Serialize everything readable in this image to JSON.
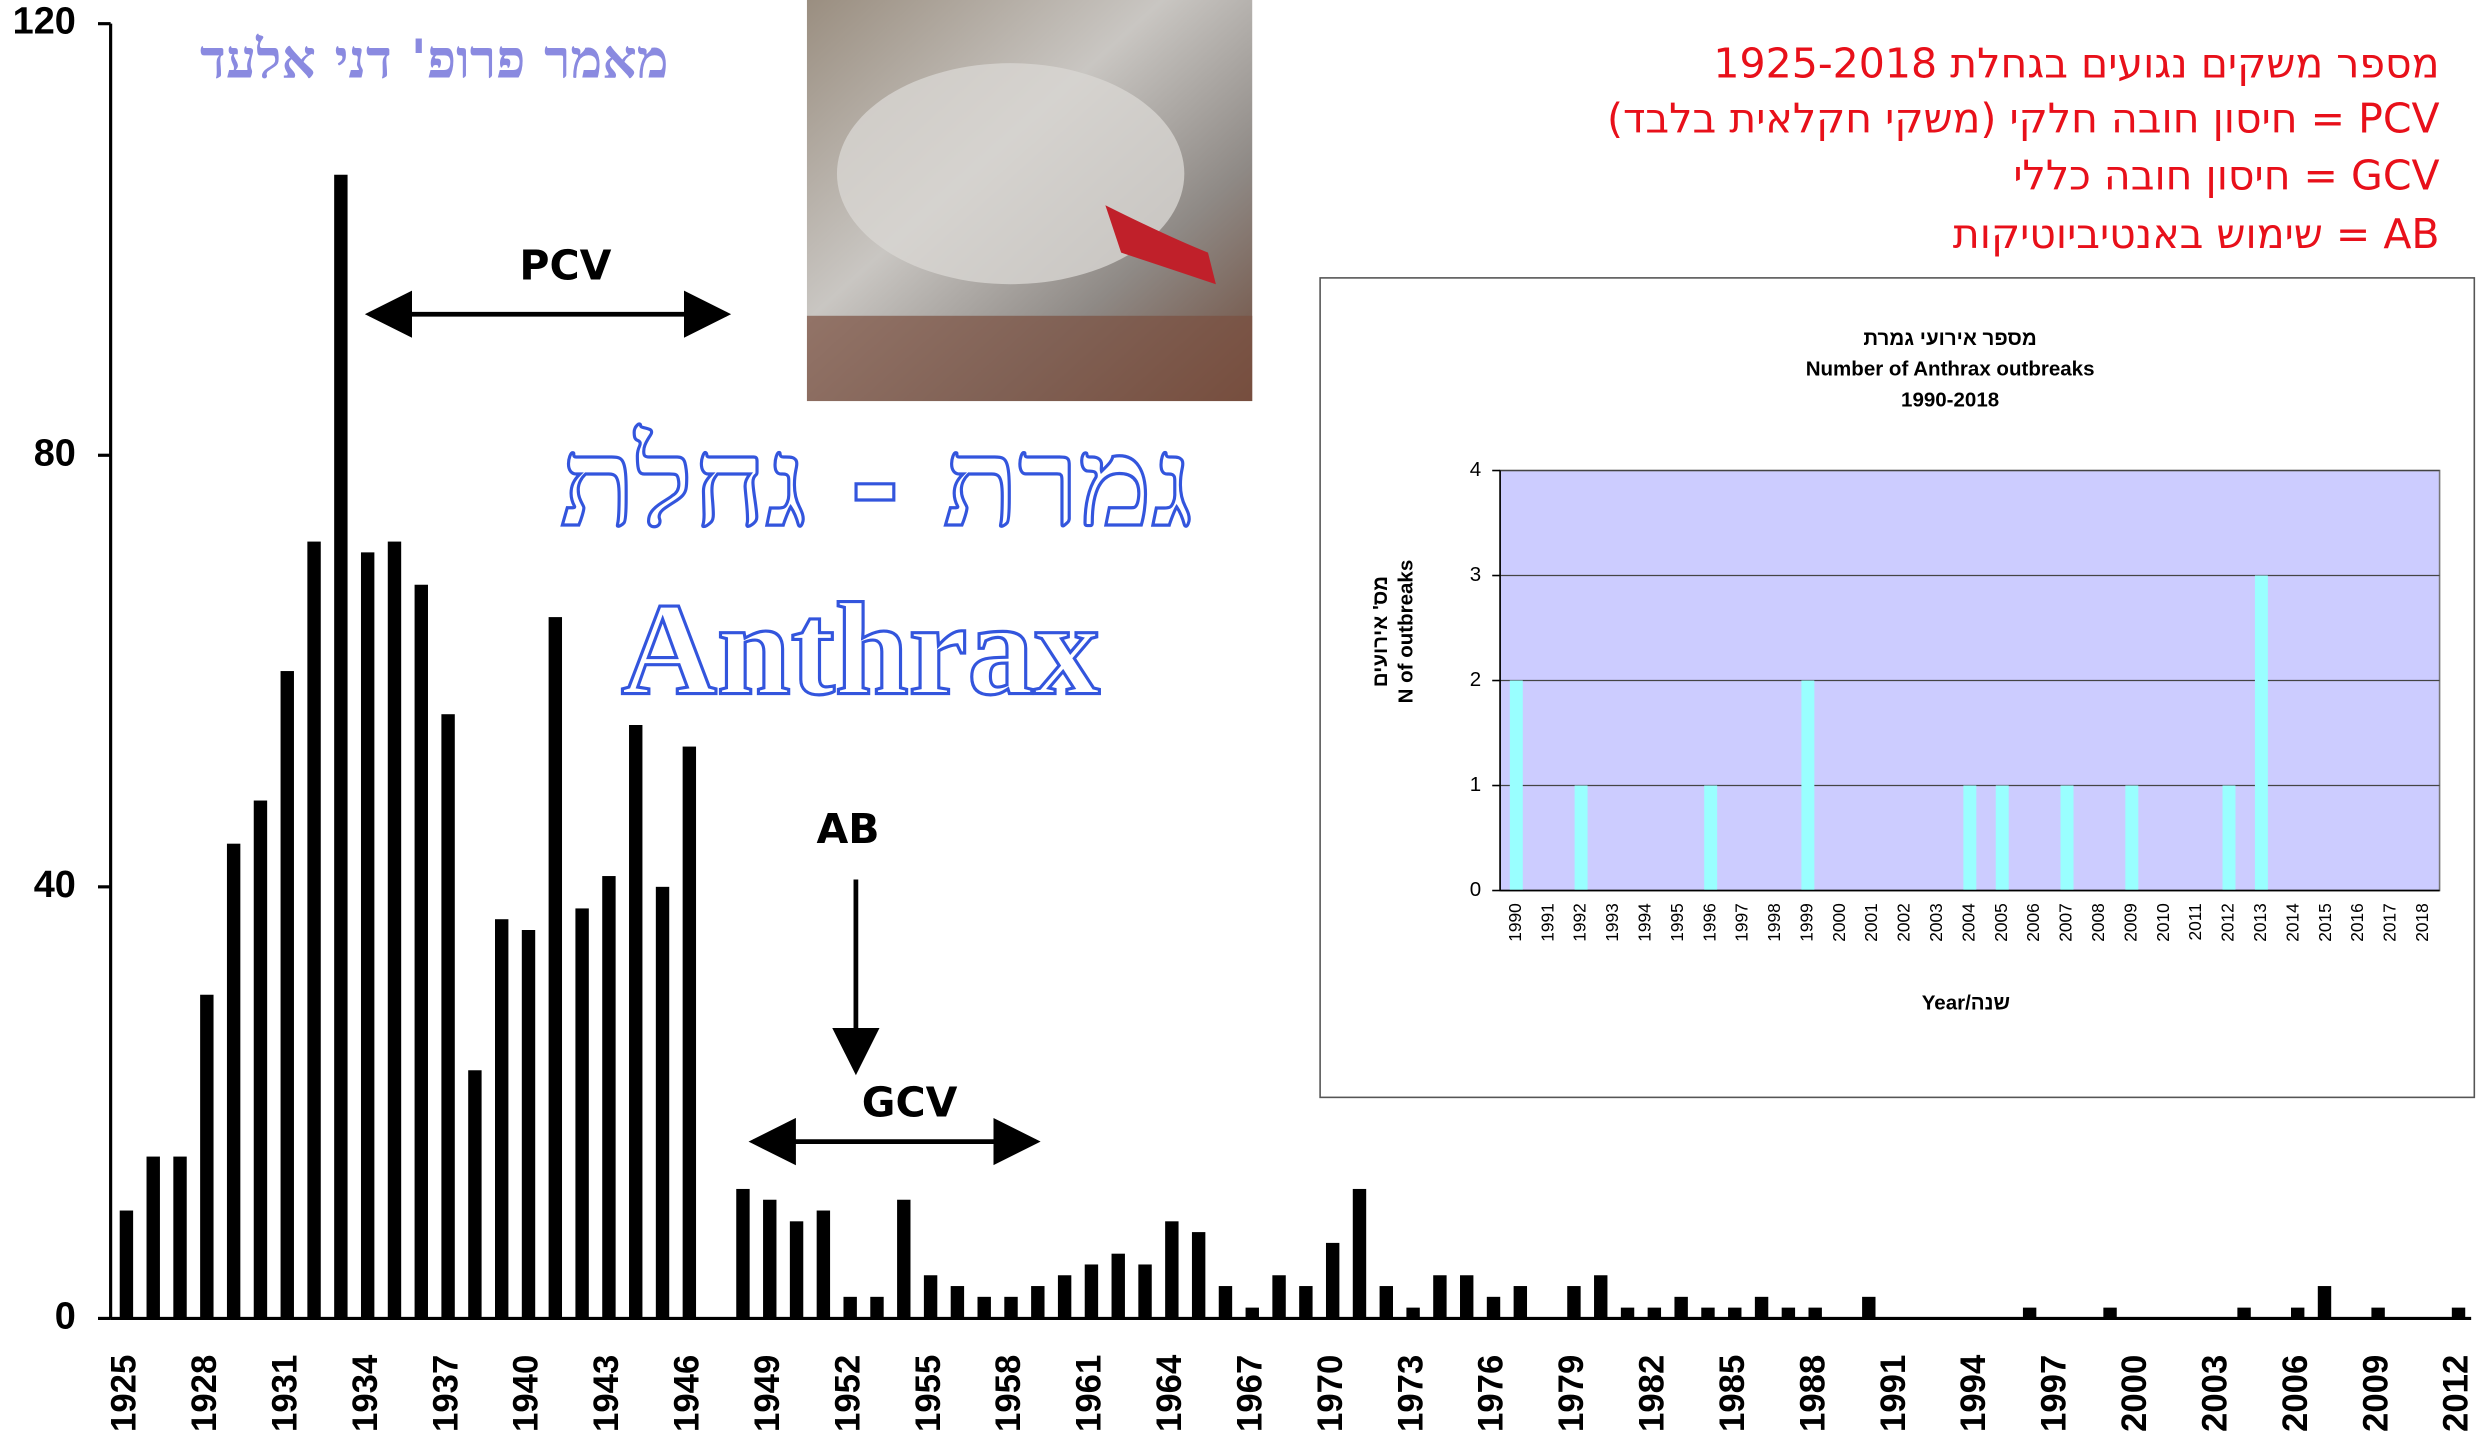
{
  "chart_data": [
    {
      "type": "bar",
      "title": "גמרת - גחלת",
      "subtitle": "Anthrax",
      "credit": "מאמר פרופ' דני אלעד",
      "notes": [
        "מספר משקים נגועים בגחלת 1925-2018",
        "PCV = חיסון חובה חלקי (משקי חקלאית בלבד)",
        "GCV = חיסון חובה כללי",
        "AB = שימוש באנטיביוטיקות"
      ],
      "annotations": [
        "PCV",
        "AB",
        "GCV"
      ],
      "categories": [
        "1925",
        null,
        null,
        "1928",
        null,
        null,
        "1931",
        null,
        null,
        "1934",
        null,
        null,
        "1937",
        null,
        null,
        "1940",
        null,
        null,
        "1943",
        null,
        null,
        "1946",
        null,
        null,
        "1949",
        null,
        null,
        "1952",
        null,
        null,
        "1955",
        null,
        null,
        "1958",
        null,
        null,
        "1961",
        null,
        null,
        "1964",
        null,
        null,
        "1967",
        null,
        null,
        "1970",
        null,
        null,
        "1973",
        null,
        null,
        "1976",
        null,
        null,
        "1979",
        null,
        null,
        "1982",
        null,
        null,
        "1985",
        null,
        null,
        "1988",
        null,
        null,
        "1991",
        null,
        null,
        "1994",
        null,
        null,
        "1997",
        null,
        null,
        "2000",
        null,
        null,
        "2003",
        null,
        null,
        "2006",
        null,
        null,
        "2009",
        null,
        null,
        "2012"
      ],
      "values": [
        10,
        15,
        15,
        30,
        44,
        48,
        60,
        72,
        106,
        71,
        72,
        68,
        56,
        23,
        37,
        36,
        65,
        38,
        41,
        55,
        40,
        53,
        null,
        12,
        11,
        9,
        10,
        2,
        2,
        11,
        4,
        3,
        2,
        2,
        3,
        4,
        5,
        6,
        5,
        9,
        8,
        3,
        1,
        4,
        3,
        7,
        12,
        3,
        1,
        4,
        4,
        2,
        3,
        0,
        3,
        4,
        1,
        1,
        2,
        1,
        1,
        2,
        1,
        1,
        0,
        2,
        0,
        0,
        0,
        0,
        0,
        1,
        0,
        0,
        1,
        0,
        0,
        0,
        0,
        1,
        0,
        1,
        3,
        0,
        1,
        0,
        0,
        1
      ],
      "color": "#000000",
      "ylim": [
        0,
        120
      ],
      "yticks": [
        0,
        40,
        80,
        120
      ],
      "grid": false
    },
    {
      "type": "bar",
      "title": [
        "מספר אירועי גמרת",
        "Number of Anthrax outbreaks",
        "1990-2018"
      ],
      "y_label": [
        "מס' אירועים",
        "N of outbreaks"
      ],
      "x_label": "Year/שנה",
      "categories": [
        "1990",
        "1991",
        "1992",
        "1993",
        "1994",
        "1995",
        "1996",
        "1997",
        "1998",
        "1999",
        "2000",
        "2001",
        "2002",
        "2003",
        "2004",
        "2005",
        "2006",
        "2007",
        "2008",
        "2009",
        "2010",
        "2011",
        "2012",
        "2013",
        "2014",
        "2015",
        "2016",
        "2017",
        "2018"
      ],
      "values": [
        2,
        0,
        1,
        0,
        0,
        0,
        1,
        0,
        0,
        2,
        0,
        0,
        0,
        0,
        1,
        1,
        0,
        1,
        0,
        1,
        0,
        0,
        1,
        3,
        0,
        0,
        0,
        0,
        0
      ],
      "color": "#99ffff",
      "plot_background": "#ccccff",
      "ylim": [
        0,
        4
      ],
      "yticks": [
        0,
        1,
        2,
        3,
        4
      ],
      "grid": true
    }
  ]
}
